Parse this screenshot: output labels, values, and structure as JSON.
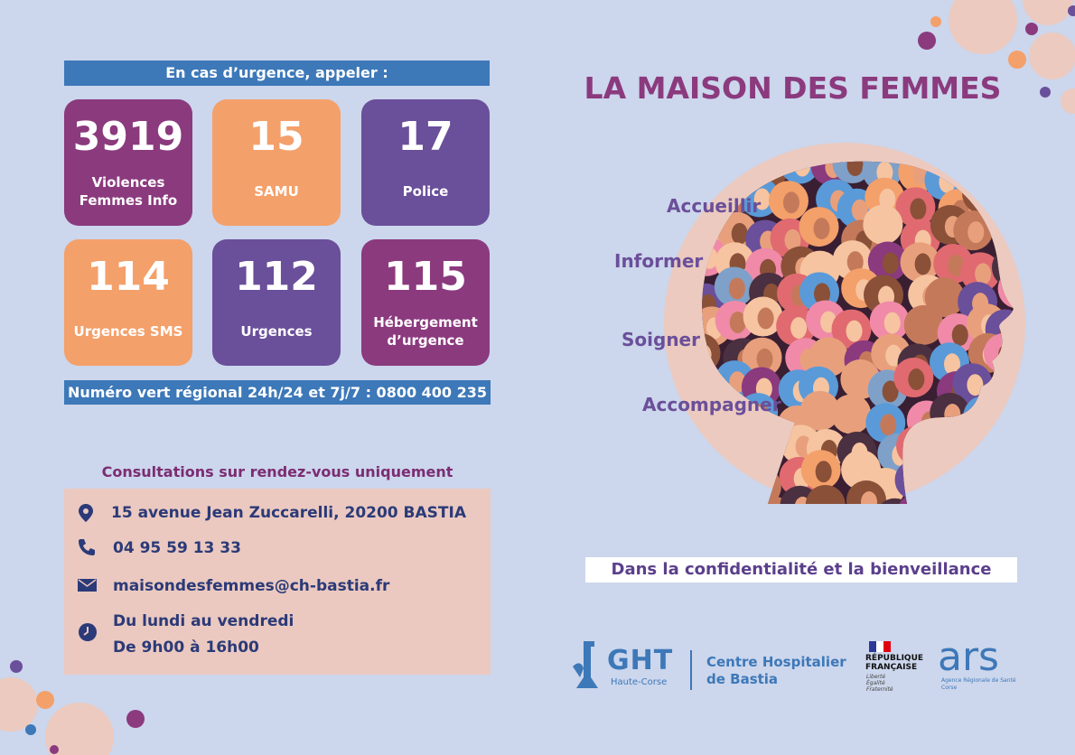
{
  "emergency": {
    "header": "En cas d’urgence, appeler :",
    "numbers": [
      {
        "number": "3919",
        "label": "Violences Femmes Info"
      },
      {
        "number": "15",
        "label": "SAMU"
      },
      {
        "number": "17",
        "label": "Police"
      },
      {
        "number": "114",
        "label": "Urgences SMS"
      },
      {
        "number": "112",
        "label": "Urgences"
      },
      {
        "number": "115",
        "label": "Hébergement d’urgence"
      }
    ],
    "hotline": "Numéro vert régional 24h/24 et 7j/7 : 0800 400 235"
  },
  "consultation": {
    "title": "Consultations sur rendez-vous uniquement",
    "address": "15 avenue Jean Zuccarelli, 20200 BASTIA",
    "phone": "04 95 59 13 33",
    "email": "maisondesfemmes@ch-bastia.fr",
    "hours": [
      "Du lundi au vendredi",
      "De 9h00 à 16h00"
    ]
  },
  "header": {
    "title": "LA MAISON DES FEMMES"
  },
  "verbs": [
    "Accueillir",
    "Informer",
    "Soigner",
    "Accompagner"
  ],
  "tagline": "Dans la confidentialité et la bienveillance",
  "logos": {
    "ght": "GHT",
    "ght_sub": "Haute-Corse",
    "hospital": [
      "Centre Hospitalier",
      "de Bastia"
    ],
    "republique": [
      "RÉPUBLIQUE",
      "FRANÇAISE"
    ],
    "motto": [
      "Liberté",
      "Égalité",
      "Fraternité"
    ],
    "ars": "ars",
    "ars_sub": [
      "Agence Régionale de Santé",
      "Corse"
    ]
  }
}
